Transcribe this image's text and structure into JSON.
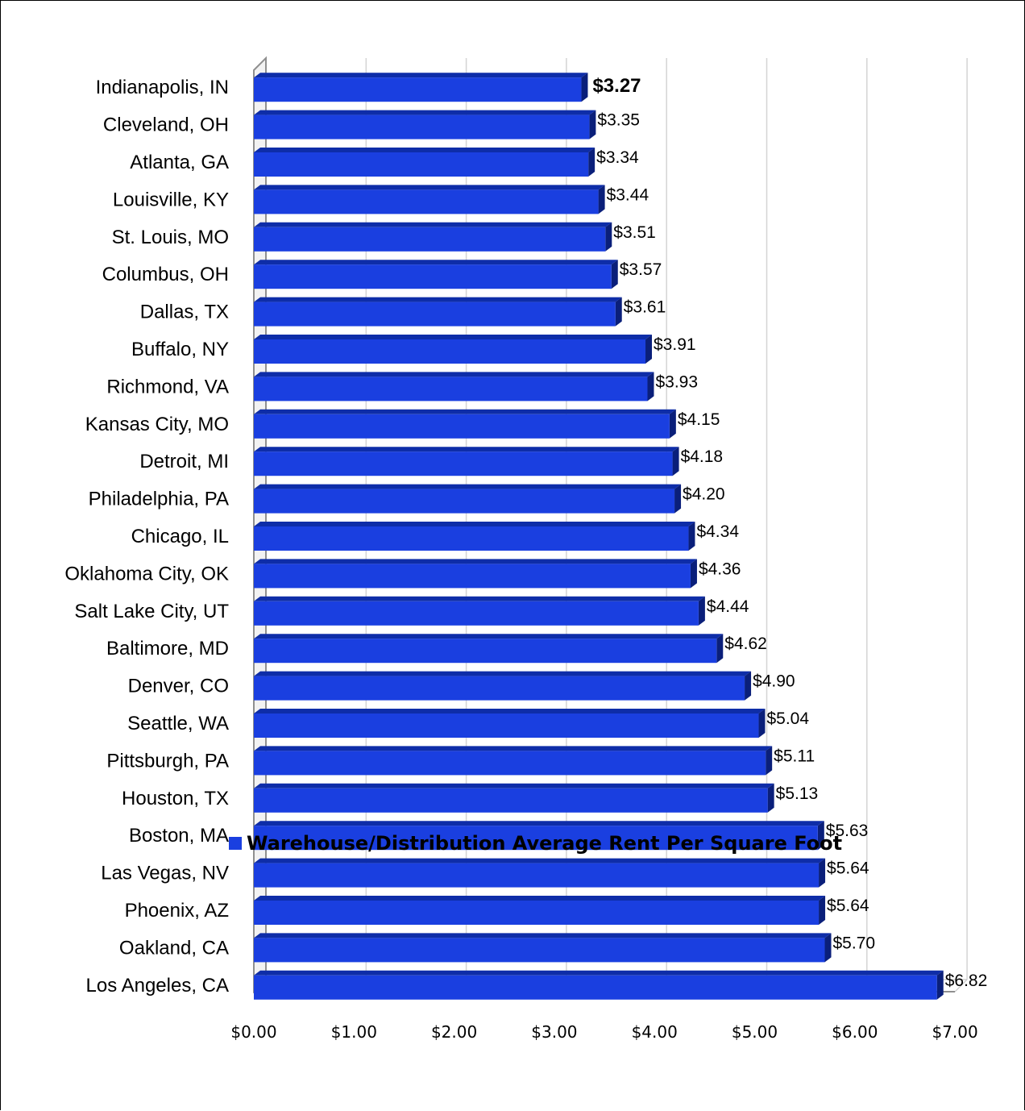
{
  "chart_data": {
    "type": "bar",
    "orientation": "horizontal",
    "categories": [
      "Indianapolis, IN",
      "Cleveland, OH",
      "Atlanta, GA",
      "Louisville, KY",
      "St. Louis, MO",
      "Columbus, OH",
      "Dallas, TX",
      "Buffalo, NY",
      "Richmond, VA",
      "Kansas City, MO",
      "Detroit, MI",
      "Philadelphia, PA",
      "Chicago, IL",
      "Oklahoma City, OK",
      "Salt Lake City, UT",
      "Baltimore, MD",
      "Denver, CO",
      "Seattle, WA",
      "Pittsburgh, PA",
      "Houston, TX",
      "Boston, MA",
      "Las Vegas, NV",
      "Phoenix, AZ",
      "Oakland, CA",
      "Los Angeles, CA"
    ],
    "values": [
      3.27,
      3.35,
      3.34,
      3.44,
      3.51,
      3.57,
      3.61,
      3.91,
      3.93,
      4.15,
      4.18,
      4.2,
      4.34,
      4.36,
      4.44,
      4.62,
      4.9,
      5.04,
      5.11,
      5.13,
      5.63,
      5.64,
      5.64,
      5.7,
      6.82
    ],
    "data_labels": [
      "$3.27",
      "$3.35",
      "$3.34",
      "$3.44",
      "$3.51",
      "$3.57",
      "$3.61",
      "$3.91",
      "$3.93",
      "$4.15",
      "$4.18",
      "$4.20",
      "$4.34",
      "$4.36",
      "$4.44",
      "$4.62",
      "$4.90",
      "$5.04",
      "$5.11",
      "$5.13",
      "$5.63",
      "$5.64",
      "$5.64",
      "$5.70",
      "$6.82"
    ],
    "highlighted_label_index": 0,
    "x_ticks": [
      "$0.00",
      "$1.00",
      "$2.00",
      "$3.00",
      "$4.00",
      "$5.00",
      "$6.00",
      "$7.00"
    ],
    "xlim": [
      0,
      7
    ],
    "grid": true,
    "style": "3d",
    "bar_color": "#1a3fe0",
    "legend": {
      "placement": "bottom",
      "entries": [
        "Warehouse/Distribution Average Rent Per Square Foot"
      ]
    },
    "title": "",
    "xlabel": "",
    "ylabel": ""
  }
}
